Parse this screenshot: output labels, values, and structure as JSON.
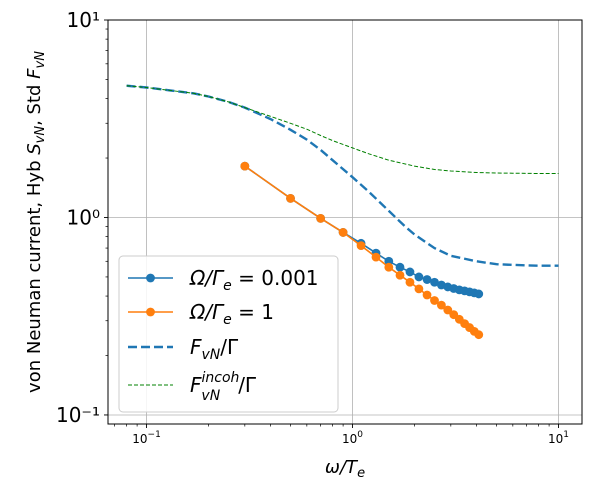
{
  "chart_data": {
    "type": "line",
    "xscale": "log",
    "yscale": "log",
    "xlim": [
      0.065,
      13
    ],
    "ylim": [
      0.09,
      10
    ],
    "grid": true,
    "legend_position": "lower-left",
    "xlabel": "ω/T",
    "xlabel_sub": "e",
    "ylabel_parts": [
      "von Neuman current, Hyb ",
      "S",
      "vN",
      ", Std ",
      "F",
      "vN"
    ],
    "x_ticks": [
      {
        "value": 0.1,
        "base": "10",
        "exp": "−1"
      },
      {
        "value": 1,
        "base": "10",
        "exp": "0"
      },
      {
        "value": 10,
        "base": "10",
        "exp": "1"
      }
    ],
    "y_ticks": [
      {
        "value": 0.1,
        "text": "10⁻¹"
      },
      {
        "value": 1,
        "text": "10⁰"
      },
      {
        "value": 10,
        "text": "10¹"
      }
    ],
    "colors": {
      "blue": "#1f77b4",
      "orange": "#ff7f0e",
      "green": "#008000",
      "grid": "#b0b0b0"
    },
    "series": [
      {
        "name": "Ω/Γe = 0.001",
        "legend_main": "Ω/Γ",
        "legend_sub": "e",
        "legend_tail": " = 0.001",
        "color": "#1f77b4",
        "style": "marker-line",
        "x": [
          0.3,
          0.5,
          0.7,
          0.9,
          1.1,
          1.3,
          1.5,
          1.7,
          1.9,
          2.1,
          2.3,
          2.5,
          2.7,
          2.9,
          3.1,
          3.3,
          3.5,
          3.7,
          3.9,
          4.1
        ],
        "y": [
          1.82,
          1.25,
          0.99,
          0.84,
          0.74,
          0.66,
          0.6,
          0.56,
          0.53,
          0.5,
          0.485,
          0.47,
          0.455,
          0.445,
          0.437,
          0.43,
          0.425,
          0.42,
          0.415,
          0.41
        ]
      },
      {
        "name": "Ω/Γe = 1",
        "legend_main": "Ω/Γ",
        "legend_sub": "e",
        "legend_tail": " = 1",
        "color": "#ff7f0e",
        "style": "marker-line",
        "x": [
          0.3,
          0.5,
          0.7,
          0.9,
          1.1,
          1.3,
          1.5,
          1.7,
          1.9,
          2.1,
          2.3,
          2.5,
          2.7,
          2.9,
          3.1,
          3.3,
          3.5,
          3.7,
          3.9,
          4.1
        ],
        "y": [
          1.82,
          1.25,
          0.99,
          0.84,
          0.72,
          0.63,
          0.56,
          0.51,
          0.47,
          0.435,
          0.405,
          0.38,
          0.36,
          0.34,
          0.322,
          0.305,
          0.29,
          0.277,
          0.265,
          0.255
        ]
      },
      {
        "name": "FvN/Γ",
        "legend_main": "F",
        "legend_sub": "vN",
        "legend_tail": "/Γ",
        "color": "#1f77b4",
        "style": "dashed-thick",
        "x": [
          0.08,
          0.1,
          0.13,
          0.17,
          0.2,
          0.25,
          0.3,
          0.4,
          0.5,
          0.6,
          0.7,
          0.8,
          1.0,
          1.2,
          1.5,
          1.8,
          2.0,
          2.5,
          3.0,
          4.0,
          5.0,
          6.0,
          8.0,
          10.0
        ],
        "y": [
          4.65,
          4.55,
          4.4,
          4.25,
          4.1,
          3.85,
          3.6,
          3.15,
          2.78,
          2.48,
          2.2,
          1.95,
          1.6,
          1.35,
          1.08,
          0.9,
          0.82,
          0.7,
          0.64,
          0.6,
          0.58,
          0.575,
          0.57,
          0.57
        ]
      },
      {
        "name": "FvN^incoh/Γ",
        "legend_main": "F",
        "legend_sub": "vN",
        "legend_sup": "incoh",
        "legend_tail": "/Γ",
        "color": "#008000",
        "style": "dashed-thin",
        "x": [
          0.08,
          0.1,
          0.13,
          0.17,
          0.2,
          0.25,
          0.3,
          0.4,
          0.5,
          0.6,
          0.7,
          0.8,
          1.0,
          1.2,
          1.5,
          2.0,
          2.5,
          3.0,
          4.0,
          5.0,
          6.0,
          8.0,
          10.0
        ],
        "y": [
          4.65,
          4.55,
          4.4,
          4.25,
          4.1,
          3.85,
          3.6,
          3.25,
          3.0,
          2.8,
          2.6,
          2.45,
          2.25,
          2.1,
          1.95,
          1.82,
          1.75,
          1.72,
          1.69,
          1.68,
          1.675,
          1.67,
          1.67
        ]
      }
    ]
  }
}
